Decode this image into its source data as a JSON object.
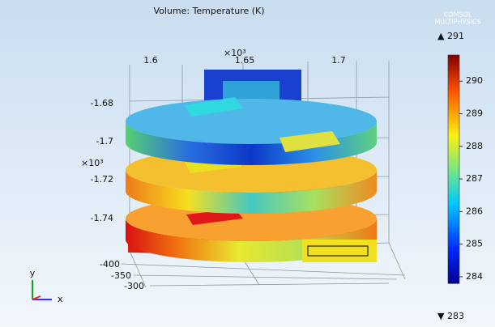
{
  "chart_data": {
    "type": "volume",
    "title": "Volume: Temperature (K)",
    "watermark": [
      "COMSOL",
      "MULTIPHYSICS"
    ],
    "xticks": [
      1.6,
      1.65,
      1.7
    ],
    "xscale": "×10³",
    "yticks": [
      -1.68,
      -1.7,
      -1.72,
      -1.74
    ],
    "yscale": "×10³",
    "zticks": [
      -400,
      -350,
      -300
    ],
    "triad": [
      "y",
      "x"
    ],
    "colorbar": {
      "clim": [
        283.8,
        290.8
      ],
      "ticks": [
        284,
        285,
        286,
        287,
        288,
        289,
        290
      ],
      "max": {
        "value": 291,
        "label": "▲ 291"
      },
      "min": {
        "value": 283,
        "label": "▼ 283"
      }
    }
  }
}
